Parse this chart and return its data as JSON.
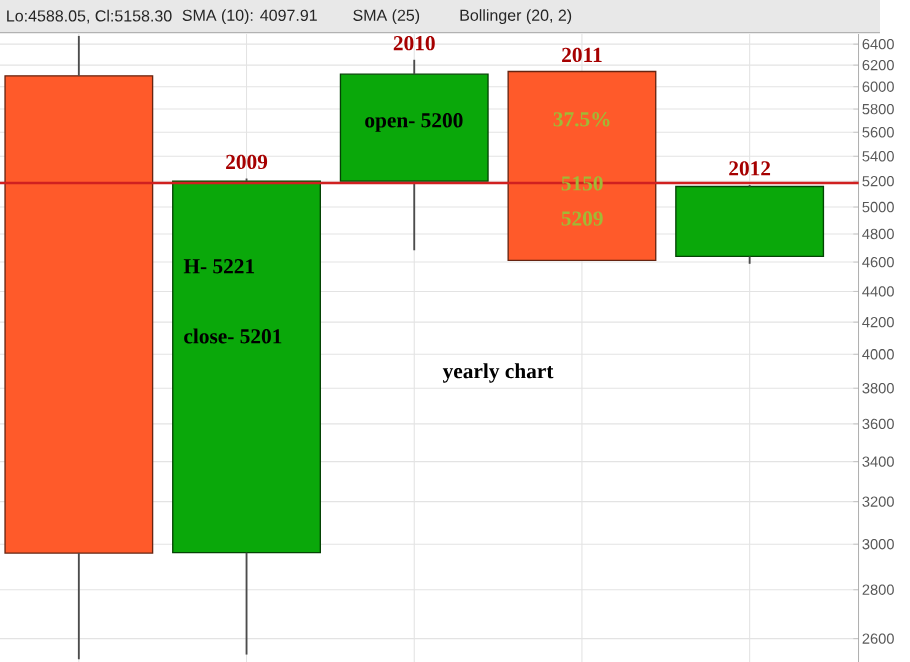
{
  "chart_data": {
    "type": "candlestick",
    "categories": [
      null,
      "2009",
      "2010",
      "2011",
      "2012"
    ],
    "ohlc": [
      [
        6100,
        6480,
        2520,
        2960
      ],
      [
        2962,
        5221,
        2538,
        5201
      ],
      [
        5200,
        6250,
        4683,
        6115
      ],
      [
        6140,
        6140,
        4612,
        4612
      ],
      [
        4640,
        5170,
        4588,
        5158
      ]
    ],
    "ylim": [
      2510,
      6500
    ],
    "log": true,
    "yticks": [
      2600,
      2800,
      3000,
      3200,
      3400,
      3600,
      3800,
      4000,
      4200,
      4400,
      4600,
      4800,
      5000,
      5200,
      5400,
      5600,
      5800,
      6000,
      6200,
      6400
    ],
    "grid": true,
    "tick_labels": "y",
    "ref_lines": [
      {
        "axis": "y",
        "value": 5185,
        "color": "#d02020"
      }
    ],
    "annotations": [
      "Lo:4588.05, Cl:5158.30",
      "SMA (10): 4097.91",
      "SMA (25)",
      "Bollinger (20, 2)",
      "yearly chart",
      "H- 5221",
      "close- 5201",
      "open- 5200",
      "37.5%",
      "5150",
      "5209"
    ]
  }
}
